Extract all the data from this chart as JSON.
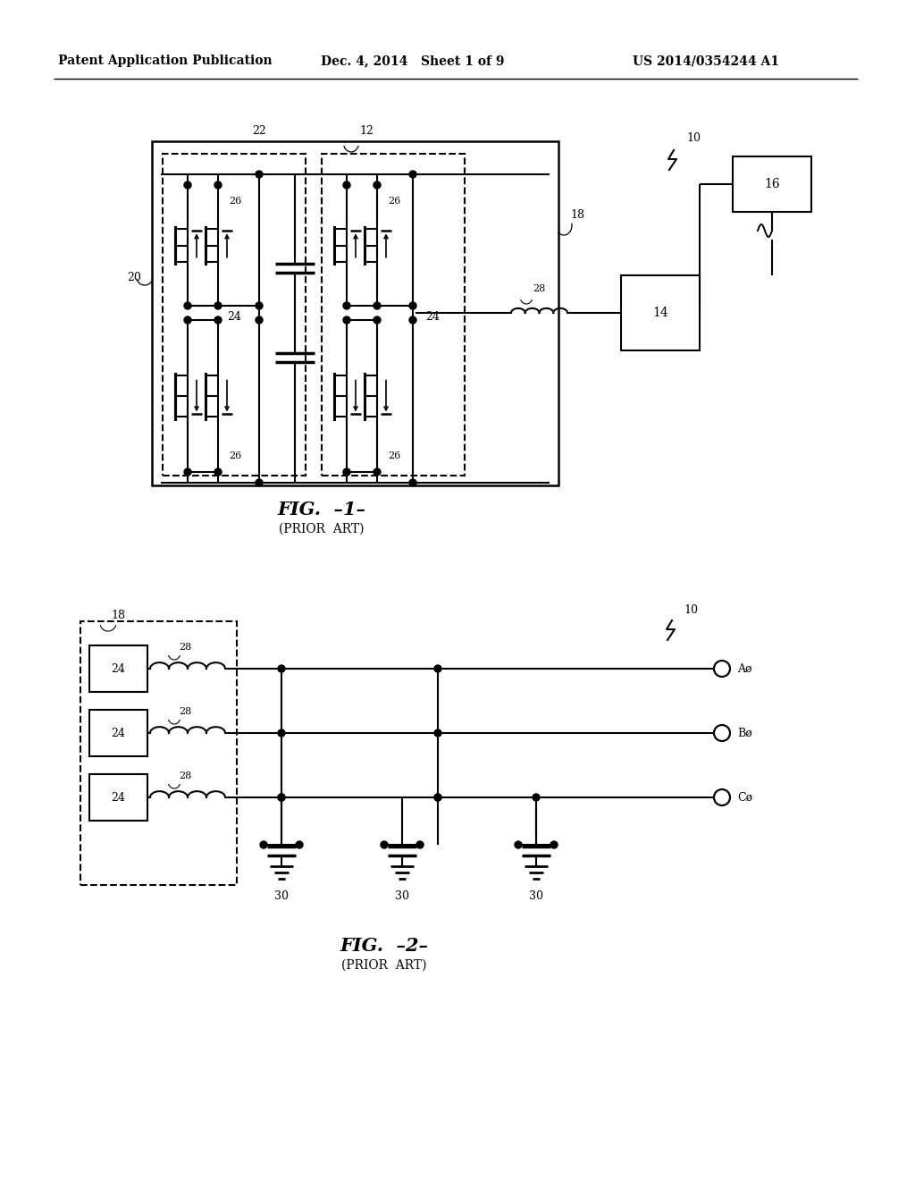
{
  "header_left": "Patent Application Publication",
  "header_mid": "Dec. 4, 2014   Sheet 1 of 9",
  "header_right": "US 2014/0354244 A1",
  "bg_color": "#ffffff",
  "fig1_title": "FIG.  –1–",
  "fig1_subtitle": "(PRIOR  ART)",
  "fig2_title": "FIG.  –2–",
  "fig2_subtitle": "(PRIOR  ART)"
}
